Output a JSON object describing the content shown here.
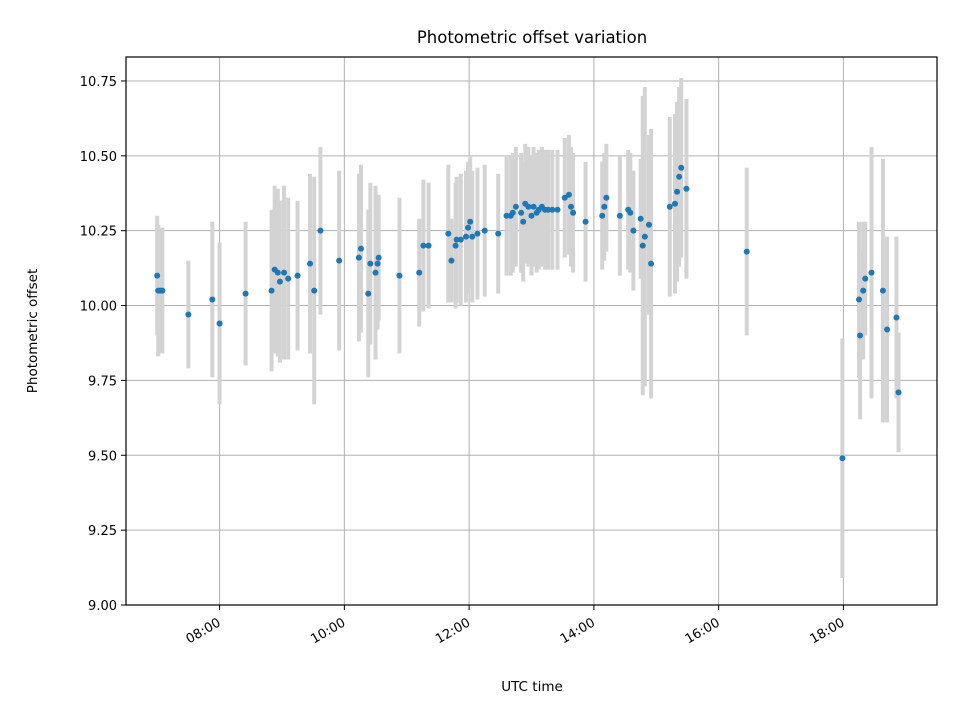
{
  "chart_data": {
    "type": "scatter",
    "title": "Photometric offset variation",
    "xlabel": "UTC time",
    "ylabel": "Photometric offset",
    "x_axis_kind": "time (HH:MM)",
    "xlim": [
      "06:30",
      "19:30"
    ],
    "ylim": [
      9.0,
      10.83
    ],
    "xticks": [
      "08:00",
      "10:00",
      "12:00",
      "14:00",
      "16:00",
      "18:00"
    ],
    "yticks": [
      9.0,
      9.25,
      9.5,
      9.75,
      10.0,
      10.25,
      10.5,
      10.75
    ],
    "ytick_labels": [
      "9.00",
      "9.25",
      "9.50",
      "9.75",
      "10.00",
      "10.25",
      "10.50",
      "10.75"
    ],
    "grid": true,
    "colors": {
      "point": "#1f77b4",
      "errorbar": "#d3d3d3",
      "grid": "#b0b0b0"
    },
    "columns": [
      "time",
      "offset",
      "error"
    ],
    "points": [
      [
        "07:00",
        10.1,
        0.2
      ],
      [
        "07:01",
        10.05,
        0.22
      ],
      [
        "07:03",
        10.05,
        0.21
      ],
      [
        "07:05",
        10.05,
        0.21
      ],
      [
        "07:30",
        9.97,
        0.18
      ],
      [
        "07:53",
        10.02,
        0.26
      ],
      [
        "08:00",
        9.94,
        0.27
      ],
      [
        "08:25",
        10.04,
        0.24
      ],
      [
        "08:50",
        10.05,
        0.27
      ],
      [
        "08:53",
        10.12,
        0.28
      ],
      [
        "08:56",
        10.11,
        0.28
      ],
      [
        "08:58",
        10.08,
        0.27
      ],
      [
        "09:02",
        10.11,
        0.29
      ],
      [
        "09:06",
        10.09,
        0.27
      ],
      [
        "09:15",
        10.1,
        0.25
      ],
      [
        "09:27",
        10.14,
        0.3
      ],
      [
        "09:31",
        10.05,
        0.38
      ],
      [
        "09:37",
        10.25,
        0.28
      ],
      [
        "09:55",
        10.15,
        0.3
      ],
      [
        "10:14",
        10.16,
        0.28
      ],
      [
        "10:16",
        10.19,
        0.28
      ],
      [
        "10:23",
        10.04,
        0.28
      ],
      [
        "10:25",
        10.14,
        0.27
      ],
      [
        "10:30",
        10.11,
        0.29
      ],
      [
        "10:32",
        10.14,
        0.22
      ],
      [
        "10:33",
        10.16,
        0.21
      ],
      [
        "10:53",
        10.1,
        0.26
      ],
      [
        "11:12",
        10.11,
        0.18
      ],
      [
        "11:16",
        10.2,
        0.22
      ],
      [
        "11:21",
        10.2,
        0.21
      ],
      [
        "11:40",
        10.24,
        0.23
      ],
      [
        "11:43",
        10.15,
        0.14
      ],
      [
        "11:47",
        10.2,
        0.21
      ],
      [
        "11:48",
        10.22,
        0.21
      ],
      [
        "11:52",
        10.22,
        0.22
      ],
      [
        "11:57",
        10.23,
        0.22
      ],
      [
        "11:59",
        10.26,
        0.22
      ],
      [
        "12:01",
        10.28,
        0.22
      ],
      [
        "12:03",
        10.23,
        0.22
      ],
      [
        "12:08",
        10.24,
        0.22
      ],
      [
        "12:15",
        10.25,
        0.22
      ],
      [
        "12:28",
        10.24,
        0.2
      ],
      [
        "12:36",
        10.3,
        0.2
      ],
      [
        "12:40",
        10.3,
        0.2
      ],
      [
        "12:42",
        10.31,
        0.2
      ],
      [
        "12:45",
        10.33,
        0.2
      ],
      [
        "12:50",
        10.31,
        0.2
      ],
      [
        "12:52",
        10.28,
        0.2
      ],
      [
        "12:54",
        10.34,
        0.2
      ],
      [
        "12:57",
        10.33,
        0.2
      ],
      [
        "13:00",
        10.3,
        0.2
      ],
      [
        "13:02",
        10.33,
        0.2
      ],
      [
        "13:05",
        10.31,
        0.2
      ],
      [
        "13:07",
        10.32,
        0.2
      ],
      [
        "13:10",
        10.33,
        0.2
      ],
      [
        "13:13",
        10.32,
        0.2
      ],
      [
        "13:16",
        10.32,
        0.2
      ],
      [
        "13:20",
        10.32,
        0.2
      ],
      [
        "13:25",
        10.32,
        0.2
      ],
      [
        "13:32",
        10.36,
        0.2
      ],
      [
        "13:36",
        10.37,
        0.2
      ],
      [
        "13:38",
        10.33,
        0.2
      ],
      [
        "13:40",
        10.31,
        0.2
      ],
      [
        "13:52",
        10.28,
        0.2
      ],
      [
        "14:08",
        10.3,
        0.18
      ],
      [
        "14:10",
        10.33,
        0.18
      ],
      [
        "14:12",
        10.36,
        0.18
      ],
      [
        "14:25",
        10.3,
        0.2
      ],
      [
        "14:33",
        10.32,
        0.2
      ],
      [
        "14:35",
        10.31,
        0.2
      ],
      [
        "14:38",
        10.25,
        0.2
      ],
      [
        "14:45",
        10.29,
        0.2
      ],
      [
        "14:47",
        10.2,
        0.5
      ],
      [
        "14:49",
        10.23,
        0.5
      ],
      [
        "14:53",
        10.27,
        0.3
      ],
      [
        "14:55",
        10.14,
        0.45
      ],
      [
        "15:13",
        10.33,
        0.3
      ],
      [
        "15:18",
        10.34,
        0.3
      ],
      [
        "15:20",
        10.38,
        0.3
      ],
      [
        "15:22",
        10.43,
        0.3
      ],
      [
        "15:24",
        10.46,
        0.3
      ],
      [
        "15:29",
        10.39,
        0.3
      ],
      [
        "16:27",
        10.18,
        0.28
      ],
      [
        "17:59",
        9.49,
        0.4
      ],
      [
        "18:15",
        10.02,
        0.26
      ],
      [
        "18:16",
        9.9,
        0.28
      ],
      [
        "18:19",
        10.05,
        0.23
      ],
      [
        "18:21",
        10.09,
        0.19
      ],
      [
        "18:27",
        10.11,
        0.42
      ],
      [
        "18:38",
        10.05,
        0.44
      ],
      [
        "18:42",
        9.92,
        0.31
      ],
      [
        "18:51",
        9.96,
        0.27
      ],
      [
        "18:53",
        9.71,
        0.2
      ]
    ]
  }
}
